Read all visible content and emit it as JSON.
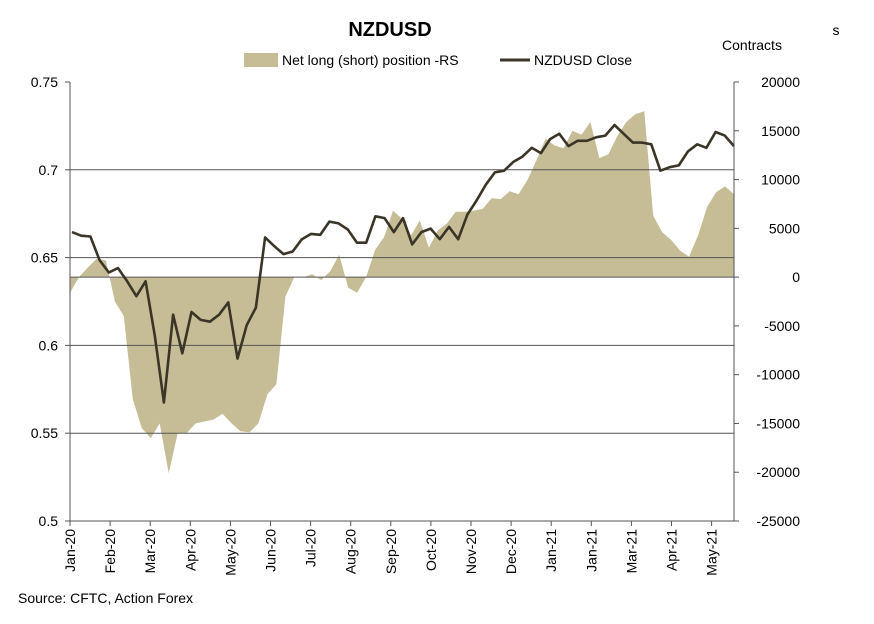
{
  "chart_data": {
    "type": "line",
    "title": "NZDUSD",
    "right_axis_label": "Contracts",
    "corner_fragment": "s",
    "source": "Source: CFTC, Action Forex",
    "left_axis": {
      "ylim": [
        0.5,
        0.75
      ],
      "ticks": [
        "0.75",
        "0.7",
        "0.65",
        "0.6",
        "0.55",
        "0.5"
      ],
      "tick_values": [
        0.75,
        0.7,
        0.65,
        0.6,
        0.55,
        0.5
      ]
    },
    "right_axis": {
      "ylim": [
        -25000,
        20000
      ],
      "ticks": [
        "20000",
        "15000",
        "10000",
        "5000",
        "0",
        "-5000",
        "-10000",
        "-15000",
        "-20000",
        "-25000"
      ],
      "tick_values": [
        20000,
        15000,
        10000,
        5000,
        0,
        -5000,
        -10000,
        -15000,
        -20000,
        -25000
      ]
    },
    "x_ticks": [
      "Jan-20",
      "Feb-20",
      "Mar-20",
      "Apr-20",
      "May-20",
      "Jun-20",
      "Jul-20",
      "Aug-20",
      "Sep-20",
      "Oct-20",
      "Nov-20",
      "Dec-20",
      "Jan-21",
      "Jan-21",
      "Mar-21",
      "Apr-21",
      "May-21"
    ],
    "gridlines": [
      0.7,
      0.65,
      0.6,
      0.55
    ],
    "legend": [
      {
        "name": "Net long (short) position -RS",
        "kind": "area",
        "color": "#c6bd97"
      },
      {
        "name": "NZDUSD Close",
        "kind": "line",
        "color": "#3b3527"
      }
    ],
    "series": [
      {
        "name": "Net long (short) position -RS",
        "axis": "right",
        "kind": "area",
        "color": "#c6bd97",
        "values": [
          -1600,
          0,
          1000,
          1900,
          1700,
          -2500,
          -4000,
          -12500,
          -15500,
          -16500,
          -15000,
          -20100,
          -16000,
          -16000,
          -15000,
          -14800,
          -14600,
          -14000,
          -15000,
          -15800,
          -15900,
          -15000,
          -12000,
          -11000,
          -2000,
          0,
          0,
          300,
          -300,
          600,
          2300,
          -1100,
          -1600,
          0,
          2800,
          4100,
          6800,
          6000,
          4300,
          5800,
          3000,
          4800,
          5500,
          6700,
          6700,
          6800,
          7000,
          8100,
          8000,
          8800,
          8500,
          10000,
          12000,
          14200,
          13500,
          13200,
          15000,
          14600,
          15900,
          12200,
          12600,
          14500,
          15900,
          16700,
          17000,
          6300,
          4600,
          3800,
          2700,
          2100,
          4300,
          7200,
          8700,
          9300,
          8500
        ]
      },
      {
        "name": "NZDUSD Close",
        "axis": "left",
        "kind": "line",
        "color": "#3b3527",
        "values": [
          0.6645,
          0.6625,
          0.662,
          0.6485,
          0.6415,
          0.644,
          0.6365,
          0.628,
          0.6365,
          0.6055,
          0.5675,
          0.6175,
          0.5955,
          0.619,
          0.6145,
          0.6135,
          0.6175,
          0.6245,
          0.5925,
          0.6115,
          0.6215,
          0.6615,
          0.6565,
          0.652,
          0.6535,
          0.6605,
          0.6635,
          0.663,
          0.6705,
          0.6695,
          0.666,
          0.6585,
          0.6585,
          0.6735,
          0.6725,
          0.6645,
          0.6725,
          0.6575,
          0.6645,
          0.6665,
          0.6605,
          0.6675,
          0.6605,
          0.6745,
          0.6825,
          0.6915,
          0.6985,
          0.6995,
          0.7045,
          0.7075,
          0.7125,
          0.7095,
          0.7175,
          0.7205,
          0.7135,
          0.7165,
          0.7165,
          0.7185,
          0.7195,
          0.7255,
          0.7205,
          0.7155,
          0.7155,
          0.7145,
          0.6995,
          0.7015,
          0.7025,
          0.7105,
          0.7145,
          0.7125,
          0.7215,
          0.7195,
          0.7135
        ]
      }
    ]
  }
}
